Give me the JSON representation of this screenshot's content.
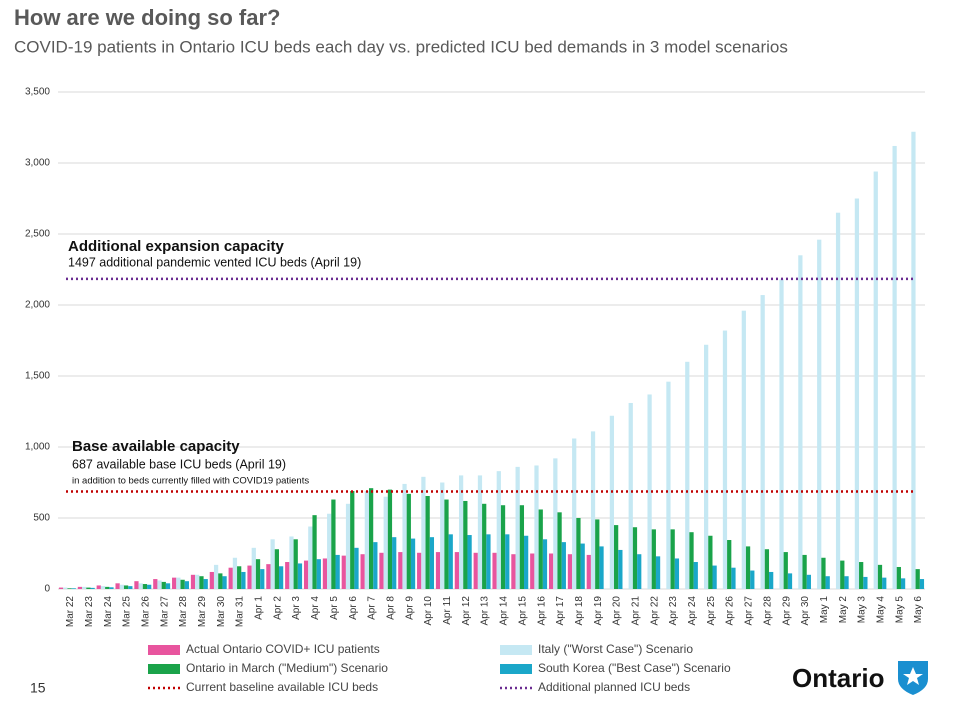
{
  "chart_data": {
    "type": "bar",
    "title": "How are we doing so far?",
    "subtitle": "COVID-19 patients in Ontario ICU beds each day vs. predicted ICU bed demands in 3 model scenarios",
    "categories": [
      "Mar 22",
      "Mar 23",
      "Mar 24",
      "Mar 25",
      "Mar 26",
      "Mar 27",
      "Mar 28",
      "Mar 29",
      "Mar 30",
      "Mar 31",
      "Apr 1",
      "Apr 2",
      "Apr 3",
      "Apr 4",
      "Apr 5",
      "Apr 6",
      "Apr 7",
      "Apr 8",
      "Apr 9",
      "Apr 10",
      "Apr 11",
      "Apr 12",
      "Apr 13",
      "Apr 14",
      "Apr 15",
      "Apr 16",
      "Apr 17",
      "Apr 18",
      "Apr 19",
      "Apr 20",
      "Apr 21",
      "Apr 22",
      "Apr 23",
      "Apr 24",
      "Apr 25",
      "Apr 26",
      "Apr 27",
      "Apr 28",
      "Apr 29",
      "Apr 30",
      "May 1",
      "May 2",
      "May 3",
      "May 4",
      "May 5",
      "May 6"
    ],
    "series": [
      {
        "name": "Actual Ontario COVID+ ICU patients",
        "color": "#e8559e",
        "values": [
          10,
          15,
          25,
          40,
          55,
          70,
          80,
          100,
          120,
          150,
          165,
          175,
          190,
          200,
          215,
          235,
          245,
          255,
          260,
          255,
          260,
          260,
          255,
          255,
          245,
          250,
          250,
          245,
          240,
          null,
          null,
          null,
          null,
          null,
          null,
          null,
          null,
          null,
          null,
          null,
          null,
          null,
          null,
          null,
          null,
          null
        ]
      },
      {
        "name": "Italy (\"Worst Case\") Scenario",
        "color": "#c5e8f3",
        "values": [
          10,
          15,
          20,
          30,
          40,
          60,
          80,
          100,
          170,
          220,
          290,
          350,
          370,
          440,
          530,
          600,
          690,
          650,
          740,
          790,
          750,
          800,
          800,
          830,
          860,
          870,
          920,
          1060,
          1110,
          1220,
          1310,
          1370,
          1460,
          1600,
          1720,
          1820,
          1960,
          2070,
          2180,
          2350,
          2460,
          2650,
          2750,
          2940,
          3120,
          3220
        ]
      },
      {
        "name": "Ontario in March (\"Medium\") Scenario",
        "color": "#1aa34a",
        "values": [
          5,
          10,
          15,
          25,
          35,
          50,
          65,
          90,
          110,
          160,
          210,
          280,
          350,
          520,
          630,
          690,
          710,
          700,
          670,
          655,
          630,
          620,
          600,
          590,
          590,
          560,
          540,
          500,
          490,
          450,
          435,
          420,
          420,
          400,
          375,
          345,
          300,
          280,
          260,
          240,
          220,
          200,
          190,
          170,
          155,
          140
        ]
      },
      {
        "name": "South Korea (\"Best Case\") Scenario",
        "color": "#1aa7c9",
        "values": [
          5,
          8,
          12,
          20,
          30,
          40,
          55,
          70,
          90,
          120,
          140,
          160,
          180,
          210,
          240,
          290,
          330,
          365,
          355,
          365,
          385,
          380,
          385,
          385,
          375,
          350,
          330,
          320,
          300,
          275,
          245,
          230,
          215,
          190,
          165,
          150,
          130,
          120,
          110,
          100,
          90,
          90,
          85,
          80,
          75,
          70
        ]
      }
    ],
    "reference_lines": [
      {
        "name": "Current baseline available ICU beds",
        "value": 687,
        "color": "#c00000"
      },
      {
        "name": "Additional planned ICU beds",
        "value": 2184,
        "color": "#6b2c91"
      }
    ],
    "annotations": [
      {
        "heading": "Additional expansion capacity",
        "text": "1497 additional pandemic vented ICU beds (April 19)"
      },
      {
        "heading": "Base available capacity",
        "text": "687 available base ICU beds (April 19)",
        "note": "in addition to beds currently filled with COVID19 patients"
      }
    ],
    "ylim": [
      0,
      3500
    ],
    "yticks": [
      0,
      500,
      {
        "value": 1000,
        "label": "1,000"
      },
      {
        "value": 1500,
        "label": "1,500"
      },
      {
        "value": 2000,
        "label": "2,000"
      },
      {
        "value": 2500,
        "label": "2,500"
      },
      {
        "value": 3000,
        "label": "3,000"
      },
      {
        "value": 3500,
        "label": "3,500"
      }
    ],
    "grid": true
  },
  "page_number": "15",
  "logo": "Ontario"
}
